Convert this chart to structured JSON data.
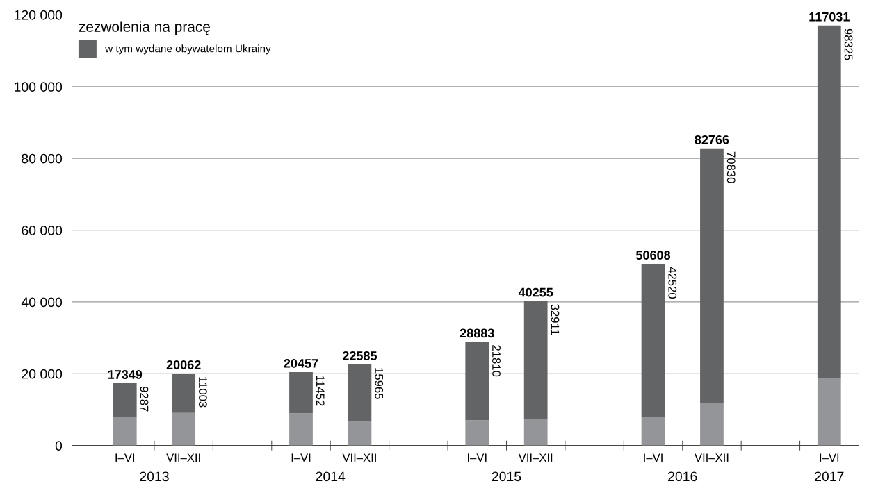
{
  "chart_data": {
    "type": "bar",
    "stacked": true,
    "legend_title": "zezwolenia na pracę",
    "legend": "top left",
    "categories": [
      "I–VI",
      "VII–XII",
      null,
      "I–VI",
      "VII–XII",
      null,
      "I–VI",
      "VII–XII",
      null,
      "I–VI",
      "VII–XII",
      null,
      "I–VI"
    ],
    "series": [
      {
        "color": "#939598",
        "values": [
          8062,
          9059,
          null,
          9005,
          6620,
          null,
          7073,
          7344,
          null,
          8088,
          11936,
          null,
          18706
        ]
      },
      {
        "name": "w tym wydane obywatelom Ukrainy",
        "color": "#636466",
        "values": [
          9287,
          11003,
          null,
          11452,
          15965,
          null,
          21810,
          32911,
          null,
          42520,
          70830,
          null,
          98325
        ],
        "value_labels": [
          "9287",
          "11003",
          null,
          "11452",
          "15965",
          null,
          "21810",
          "32911",
          null,
          "42520",
          "70830",
          null,
          "98325"
        ]
      }
    ],
    "totals": [
      "17349",
      "20062",
      null,
      "20457",
      "22585",
      null,
      "28883",
      "40255",
      null,
      "50608",
      "82766",
      null,
      "117031"
    ],
    "annotations": [
      "2013",
      "2014",
      "2015",
      "2016",
      "2017"
    ],
    "ylim": [
      0,
      120000
    ],
    "yticks": [
      0,
      {
        "value": 20000,
        "label": "20 000"
      },
      {
        "value": 40000,
        "label": "40 000"
      },
      {
        "value": 60000,
        "label": "60 000"
      },
      {
        "value": 80000,
        "label": "80 000"
      },
      {
        "value": 100000,
        "label": "100 000"
      },
      {
        "value": 120000,
        "label": "120 000"
      }
    ],
    "grid": "y"
  }
}
